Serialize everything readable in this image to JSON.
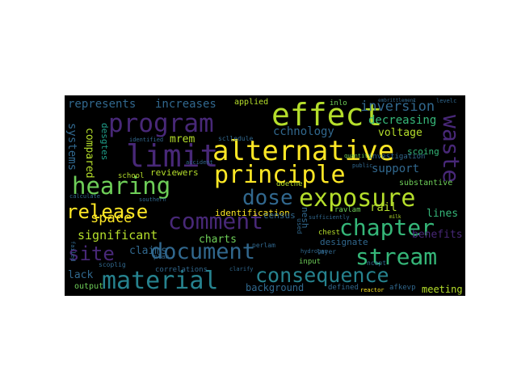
{
  "palette": [
    "#fde725",
    "#b5de2b",
    "#6ece58",
    "#35b779",
    "#1f9e89",
    "#26828e",
    "#31688e",
    "#3e4989",
    "#482878",
    "#440154"
  ],
  "words": [
    {
      "text": "alternative",
      "color": "#fde725"
    },
    {
      "text": "principle",
      "color": "#fde725"
    },
    {
      "text": "effect",
      "color": "#b5de2b"
    },
    {
      "text": "program",
      "color": "#482878"
    },
    {
      "text": "limit",
      "color": "#482878"
    },
    {
      "text": "hearing",
      "color": "#6ece58"
    },
    {
      "text": "exposure",
      "color": "#b5de2b"
    },
    {
      "text": "dose",
      "color": "#31688e"
    },
    {
      "text": "waste",
      "color": "#482878"
    },
    {
      "text": "comment",
      "color": "#482878"
    },
    {
      "text": "chapter",
      "color": "#35b779"
    },
    {
      "text": "release",
      "color": "#fde725"
    },
    {
      "text": "document",
      "color": "#31688e"
    },
    {
      "text": "site",
      "color": "#482878"
    },
    {
      "text": "stream",
      "color": "#35b779"
    },
    {
      "text": "consequence",
      "color": "#26828e"
    },
    {
      "text": "material",
      "color": "#26828e"
    },
    {
      "text": "inversion",
      "color": "#31688e"
    },
    {
      "text": "represents",
      "color": "#31688e"
    },
    {
      "text": "increases",
      "color": "#31688e"
    },
    {
      "text": "cchnology",
      "color": "#31688e"
    },
    {
      "text": "decreasing",
      "color": "#35b779"
    },
    {
      "text": "voltage",
      "color": "#b5de2b"
    },
    {
      "text": "mrem",
      "color": "#b5de2b"
    },
    {
      "text": "systems",
      "color": "#31688e"
    },
    {
      "text": "compared",
      "color": "#b5de2b"
    },
    {
      "text": "desgtes",
      "color": "#1f9e89"
    },
    {
      "text": "reviewers",
      "color": "#b5de2b"
    },
    {
      "text": "scoing",
      "color": "#35b779"
    },
    {
      "text": "support",
      "color": "#31688e"
    },
    {
      "text": "substantive",
      "color": "#6ece58"
    },
    {
      "text": "space",
      "color": "#fde725"
    },
    {
      "text": "identification",
      "color": "#fde725"
    },
    {
      "text": "census",
      "color": "#31688e"
    },
    {
      "text": "rail",
      "color": "#b5de2b"
    },
    {
      "text": "lines",
      "color": "#35b779"
    },
    {
      "text": "benefits",
      "color": "#482878"
    },
    {
      "text": "significant",
      "color": "#b5de2b"
    },
    {
      "text": "charts",
      "color": "#6ece58"
    },
    {
      "text": "claims",
      "color": "#31688e"
    },
    {
      "text": "lack",
      "color": "#31688e"
    },
    {
      "text": "designate",
      "color": "#31688e"
    },
    {
      "text": "background",
      "color": "#31688e"
    },
    {
      "text": "meeting",
      "color": "#b5de2b"
    },
    {
      "text": "output",
      "color": "#6ece58"
    },
    {
      "text": "applied",
      "color": "#b5de2b"
    },
    {
      "text": "school",
      "color": "#b5de2b"
    },
    {
      "text": "doelne",
      "color": "#b5de2b"
    },
    {
      "text": "inlo",
      "color": "#6ece58"
    },
    {
      "text": "investigation",
      "color": "#31688e"
    },
    {
      "text": "layer",
      "color": "#31688e"
    },
    {
      "text": "input",
      "color": "#6ece58"
    },
    {
      "text": "chest",
      "color": "#b5de2b"
    },
    {
      "text": "ravlam",
      "color": "#6ece58"
    },
    {
      "text": "afkevp",
      "color": "#31688e"
    },
    {
      "text": "defined",
      "color": "#31688e"
    },
    {
      "text": "correlations",
      "color": "#31688e"
    },
    {
      "text": "plan",
      "color": "#31688e"
    },
    {
      "text": "scoplig",
      "color": "#31688e"
    },
    {
      "text": "perlam",
      "color": "#31688e"
    },
    {
      "text": "sclledule",
      "color": "#31688e"
    },
    {
      "text": "sufficiently",
      "color": "#31688e"
    },
    {
      "text": "ncept",
      "color": "#31688e"
    },
    {
      "text": "levelc",
      "color": "#31688e"
    },
    {
      "text": "calculate",
      "color": "#31688e"
    },
    {
      "text": "southern",
      "color": "#31688e"
    },
    {
      "text": "used",
      "color": "#31688e"
    },
    {
      "text": "reactor",
      "color": "#fde725"
    },
    {
      "text": "nesh",
      "color": "#31688e"
    },
    {
      "text": "identified",
      "color": "#31688e"
    },
    {
      "text": "embrittlement",
      "color": "#31688e"
    },
    {
      "text": "milk",
      "color": "#b5de2b"
    },
    {
      "text": "quantity",
      "color": "#6ece58"
    },
    {
      "text": "clarify",
      "color": "#31688e"
    },
    {
      "text": "hydrogen",
      "color": "#31688e"
    },
    {
      "text": "public",
      "color": "#31688e"
    },
    {
      "text": "accident",
      "color": "#31688e"
    },
    {
      "text": "failed",
      "color": "#31688e"
    }
  ]
}
